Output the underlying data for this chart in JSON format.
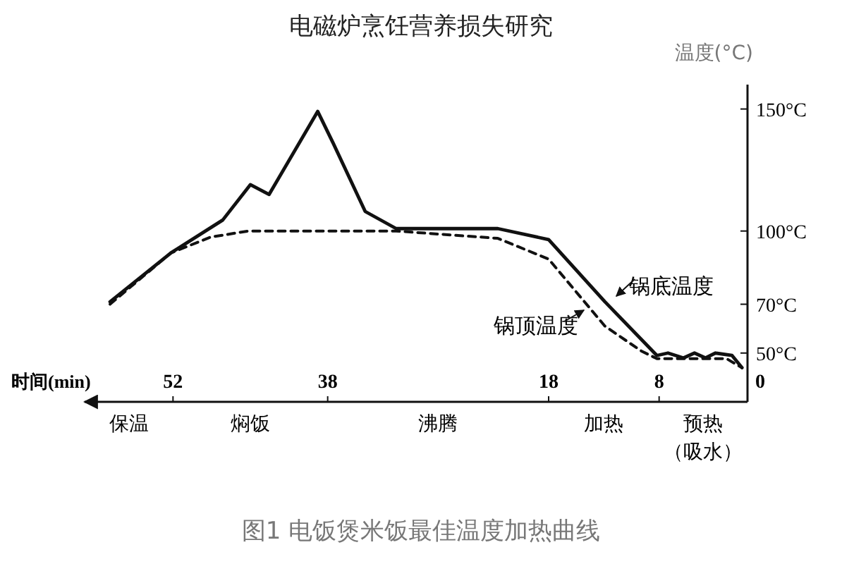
{
  "chart_data": {
    "type": "line",
    "title": "电磁炉烹饪营养损失研究",
    "xlabel": "时间(min)",
    "ylabel": "温度(°C)",
    "xlim": [
      60,
      0
    ],
    "xticks": [
      0,
      8,
      18,
      38,
      52
    ],
    "ylim": [
      30,
      160
    ],
    "yticks": [
      {
        "value": 50,
        "label": "50°C"
      },
      {
        "value": 70,
        "label": "70°C"
      },
      {
        "value": 100,
        "label": "100°C"
      },
      {
        "value": 150,
        "label": "150°C"
      }
    ],
    "grid": false,
    "marker": "none",
    "series": [
      {
        "name": "锅底温度",
        "color": "#111111",
        "line_style": "solid",
        "x": [
          57.7,
          52.2,
          47.5,
          45,
          43.3,
          38.9,
          37.5,
          34.6,
          31.8,
          22.6,
          18,
          12.9,
          8.2,
          7.2,
          5.8,
          4.8,
          3.8,
          2.9,
          1.4,
          0.5
        ],
        "values": [
          71,
          91,
          104.5,
          119,
          115,
          149,
          136,
          108,
          101,
          101,
          96.5,
          71,
          49,
          50,
          48,
          50,
          48,
          50,
          49,
          44
        ]
      },
      {
        "name": "锅顶温度",
        "color": "#111111",
        "line_style": "dashed",
        "x": [
          57.7,
          52.2,
          48.6,
          45.2,
          31.8,
          22.6,
          18,
          12.9,
          9.6,
          8.2,
          1.9,
          0.5
        ],
        "values": [
          70,
          91,
          97.5,
          100,
          100,
          97,
          88.5,
          61,
          50.8,
          47.7,
          47.7,
          44
        ]
      }
    ],
    "annotations": [
      "预热（吸水）",
      "加热",
      "沸腾",
      "焖饭",
      "保温",
      "图1 电饭煲米饭最佳温度加热曲线"
    ]
  }
}
